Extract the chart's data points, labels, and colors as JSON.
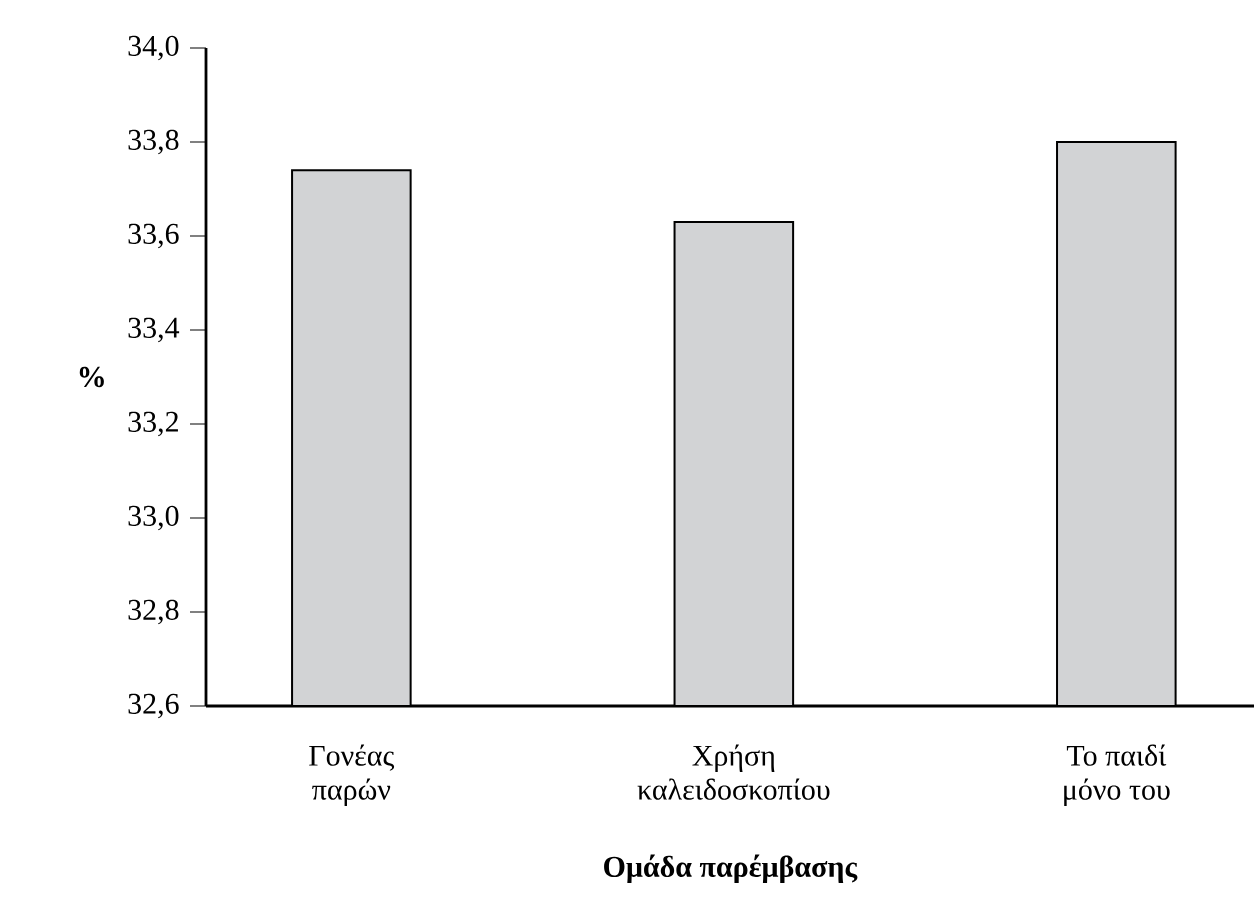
{
  "chart_data": {
    "type": "bar",
    "xlabel": "**Ομάδα παρέμβασης**",
    "ylabel": "**%**",
    "categories": [
      "Γονέας\nπαρών",
      "Χρήση\nκαλειδοσκοπίου",
      "Το παιδί\nμόνο του"
    ],
    "values": [
      33.74,
      33.63,
      33.8
    ],
    "color": "#d2d3d5",
    "ylim": [
      32.6,
      34.0
    ],
    "yticks": [
      {
        "value": 32.6,
        "label": "32,6"
      },
      {
        "value": 32.8,
        "label": "32,8"
      },
      {
        "value": 33.0,
        "label": "33,0"
      },
      {
        "value": 33.2,
        "label": "33,2"
      },
      {
        "value": 33.4,
        "label": "33,4"
      },
      {
        "value": 33.6,
        "label": "33,6"
      },
      {
        "value": 33.8,
        "label": "33,8"
      },
      {
        "value": 34.0,
        "label": "34,0"
      }
    ],
    "grid": false
  }
}
